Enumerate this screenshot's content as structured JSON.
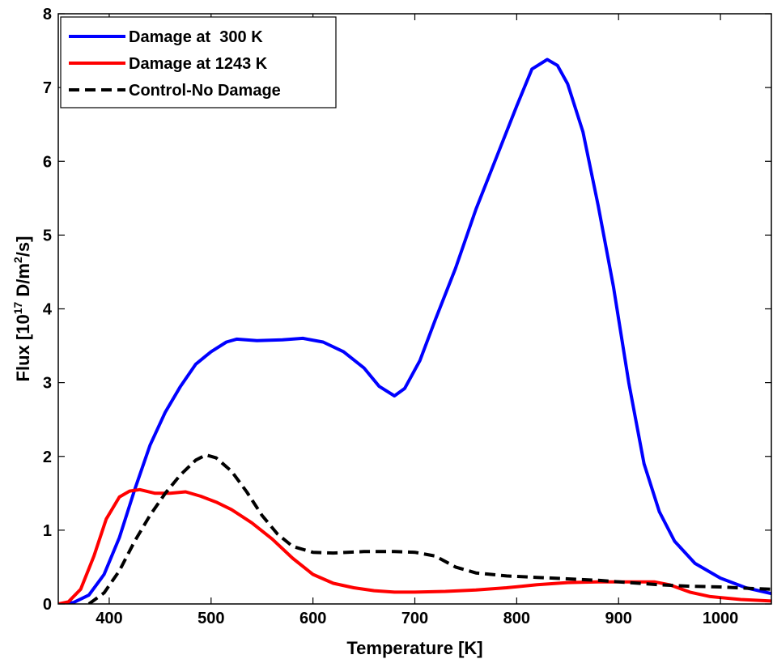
{
  "chart_data": {
    "type": "line",
    "xlabel": "Temperature [K]",
    "ylabel": {
      "prefix": "Flux [10",
      "exp": "17",
      "mid": " D/m",
      "exp2": "2",
      "suffix": "/s]"
    },
    "xlim": [
      350,
      1050
    ],
    "ylim": [
      0,
      8
    ],
    "xticks": [
      400,
      500,
      600,
      700,
      800,
      900,
      1000
    ],
    "yticks": [
      0,
      1,
      2,
      3,
      4,
      5,
      6,
      7,
      8
    ],
    "grid": false,
    "legend_position": "top-left",
    "series": [
      {
        "name": "Damage at  300 K",
        "color": "#0000ff",
        "dash": "solid",
        "points": [
          [
            350,
            0.0
          ],
          [
            365,
            0.02
          ],
          [
            380,
            0.12
          ],
          [
            395,
            0.4
          ],
          [
            410,
            0.9
          ],
          [
            425,
            1.55
          ],
          [
            440,
            2.15
          ],
          [
            455,
            2.6
          ],
          [
            470,
            2.95
          ],
          [
            485,
            3.25
          ],
          [
            500,
            3.42
          ],
          [
            515,
            3.55
          ],
          [
            525,
            3.59
          ],
          [
            545,
            3.57
          ],
          [
            570,
            3.58
          ],
          [
            590,
            3.6
          ],
          [
            610,
            3.55
          ],
          [
            630,
            3.42
          ],
          [
            650,
            3.2
          ],
          [
            665,
            2.95
          ],
          [
            680,
            2.82
          ],
          [
            690,
            2.92
          ],
          [
            705,
            3.3
          ],
          [
            720,
            3.85
          ],
          [
            740,
            4.55
          ],
          [
            760,
            5.35
          ],
          [
            780,
            6.05
          ],
          [
            800,
            6.75
          ],
          [
            815,
            7.25
          ],
          [
            830,
            7.38
          ],
          [
            840,
            7.3
          ],
          [
            850,
            7.05
          ],
          [
            865,
            6.4
          ],
          [
            880,
            5.4
          ],
          [
            895,
            4.3
          ],
          [
            910,
            3.0
          ],
          [
            925,
            1.9
          ],
          [
            940,
            1.25
          ],
          [
            955,
            0.85
          ],
          [
            975,
            0.55
          ],
          [
            1000,
            0.35
          ],
          [
            1025,
            0.22
          ],
          [
            1050,
            0.14
          ]
        ]
      },
      {
        "name": "Damage at 1243 K",
        "color": "#ff0000",
        "dash": "solid",
        "points": [
          [
            350,
            0.0
          ],
          [
            360,
            0.03
          ],
          [
            372,
            0.2
          ],
          [
            385,
            0.65
          ],
          [
            397,
            1.15
          ],
          [
            410,
            1.45
          ],
          [
            420,
            1.53
          ],
          [
            430,
            1.55
          ],
          [
            445,
            1.5
          ],
          [
            460,
            1.5
          ],
          [
            475,
            1.52
          ],
          [
            490,
            1.46
          ],
          [
            505,
            1.38
          ],
          [
            520,
            1.28
          ],
          [
            540,
            1.1
          ],
          [
            560,
            0.88
          ],
          [
            580,
            0.62
          ],
          [
            600,
            0.4
          ],
          [
            620,
            0.28
          ],
          [
            640,
            0.22
          ],
          [
            660,
            0.18
          ],
          [
            680,
            0.16
          ],
          [
            700,
            0.16
          ],
          [
            730,
            0.17
          ],
          [
            760,
            0.19
          ],
          [
            790,
            0.22
          ],
          [
            820,
            0.26
          ],
          [
            850,
            0.29
          ],
          [
            880,
            0.3
          ],
          [
            910,
            0.3
          ],
          [
            935,
            0.3
          ],
          [
            950,
            0.26
          ],
          [
            970,
            0.16
          ],
          [
            990,
            0.1
          ],
          [
            1020,
            0.06
          ],
          [
            1050,
            0.04
          ]
        ]
      },
      {
        "name": "Control-No Damage",
        "color": "#000000",
        "dash": "dashed",
        "points": [
          [
            380,
            0.0
          ],
          [
            395,
            0.15
          ],
          [
            410,
            0.45
          ],
          [
            425,
            0.85
          ],
          [
            440,
            1.2
          ],
          [
            455,
            1.5
          ],
          [
            470,
            1.75
          ],
          [
            485,
            1.95
          ],
          [
            495,
            2.02
          ],
          [
            505,
            1.98
          ],
          [
            520,
            1.8
          ],
          [
            535,
            1.52
          ],
          [
            550,
            1.2
          ],
          [
            565,
            0.95
          ],
          [
            580,
            0.78
          ],
          [
            600,
            0.7
          ],
          [
            620,
            0.69
          ],
          [
            650,
            0.71
          ],
          [
            680,
            0.71
          ],
          [
            700,
            0.7
          ],
          [
            720,
            0.65
          ],
          [
            740,
            0.5
          ],
          [
            760,
            0.42
          ],
          [
            790,
            0.38
          ],
          [
            820,
            0.36
          ],
          [
            850,
            0.34
          ],
          [
            880,
            0.32
          ],
          [
            910,
            0.29
          ],
          [
            940,
            0.26
          ],
          [
            970,
            0.24
          ],
          [
            1000,
            0.23
          ],
          [
            1030,
            0.21
          ],
          [
            1050,
            0.2
          ]
        ]
      }
    ]
  }
}
